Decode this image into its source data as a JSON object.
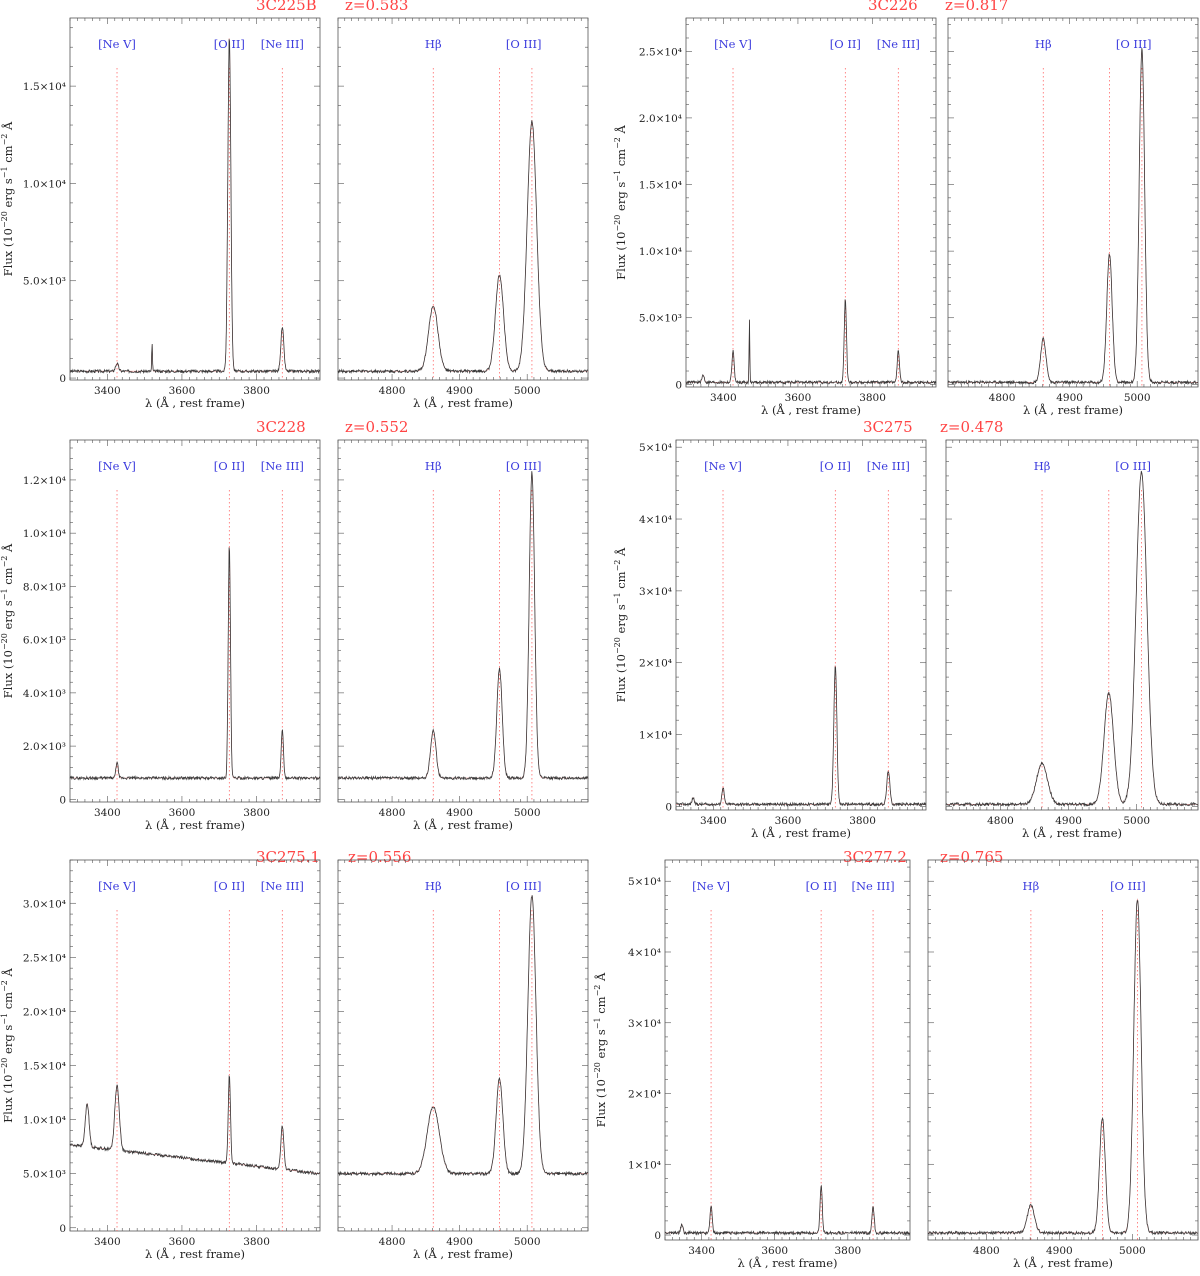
{
  "chart_data": [
    {
      "type": "line",
      "title": "3C225B",
      "subtitle": "z=0.583",
      "ylabel": "Flux (10$^{-20}$ erg s$^{-1}$ cm$^{-2}$ Å",
      "xlabel": "λ (Å , rest frame)",
      "ylim": [
        -100,
        18500
      ],
      "yticks": [
        {
          "v": 0,
          "label": "0"
        },
        {
          "v": 5000,
          "label": "5.0×10³"
        },
        {
          "v": 10000,
          "label": "1.0×10⁴"
        },
        {
          "v": 15000,
          "label": "1.5×10⁴"
        }
      ],
      "continuum": 350,
      "panels": [
        {
          "xlim": [
            3300,
            3970
          ],
          "xticks": [
            3400,
            3600,
            3800
          ],
          "lines": [
            {
              "name": "[Ne V]",
              "wl": 3426
            },
            {
              "name": "[O II]",
              "wl": 3727
            },
            {
              "name": "[Ne III]",
              "wl": 3869
            }
          ],
          "peaks": [
            {
              "wl": 3426,
              "flux": 750,
              "w": 4
            },
            {
              "wl": 3520,
              "flux": 1800,
              "w": 1
            },
            {
              "wl": 3727,
              "flux": 17600,
              "w": 4
            },
            {
              "wl": 3869,
              "flux": 2600,
              "w": 4
            }
          ]
        },
        {
          "xlim": [
            4720,
            5090
          ],
          "xticks": [
            4800,
            4900,
            5000
          ],
          "lines": [
            {
              "name": "Hβ",
              "wl": 4861
            },
            {
              "name": "[O III]",
              "wl": 5007,
              "also": 4959
            }
          ],
          "peaks": [
            {
              "wl": 4861,
              "flux": 3700,
              "w": 7
            },
            {
              "wl": 4959,
              "flux": 5300,
              "w": 6
            },
            {
              "wl": 5007,
              "flux": 13200,
              "w": 7
            }
          ]
        }
      ]
    },
    {
      "type": "line",
      "title": "3C226",
      "subtitle": "z=0.817",
      "ylabel": "Flux (10$^{-20}$ erg s$^{-1}$ cm$^{-2}$ Å",
      "xlabel": "λ (Å , rest frame)",
      "ylim": [
        -200,
        27500
      ],
      "yticks": [
        {
          "v": 0,
          "label": "0"
        },
        {
          "v": 5000,
          "label": "5.0×10³"
        },
        {
          "v": 10000,
          "label": "1.0×10⁴"
        },
        {
          "v": 15000,
          "label": "1.5×10⁴"
        },
        {
          "v": 20000,
          "label": "2.0×10⁴"
        },
        {
          "v": 25000,
          "label": "2.5×10⁴"
        }
      ],
      "continuum": 150,
      "panels": [
        {
          "xlim": [
            3300,
            3970
          ],
          "xticks": [
            3400,
            3600,
            3800
          ],
          "lines": [
            {
              "name": "[Ne V]",
              "wl": 3426
            },
            {
              "name": "[O II]",
              "wl": 3727
            },
            {
              "name": "[Ne III]",
              "wl": 3869
            }
          ],
          "peaks": [
            {
              "wl": 3346,
              "flux": 700,
              "w": 3
            },
            {
              "wl": 3426,
              "flux": 2500,
              "w": 3
            },
            {
              "wl": 3470,
              "flux": 4800,
              "w": 1
            },
            {
              "wl": 3727,
              "flux": 6400,
              "w": 3
            },
            {
              "wl": 3869,
              "flux": 2500,
              "w": 3
            }
          ]
        },
        {
          "xlim": [
            4720,
            5090
          ],
          "xticks": [
            4800,
            4900,
            5000
          ],
          "lines": [
            {
              "name": "Hβ",
              "wl": 4861
            },
            {
              "name": "[O III]",
              "wl": 5007,
              "also": 4959
            }
          ],
          "peaks": [
            {
              "wl": 4861,
              "flux": 3400,
              "w": 4
            },
            {
              "wl": 4959,
              "flux": 9800,
              "w": 4
            },
            {
              "wl": 5007,
              "flux": 25200,
              "w": 4
            }
          ]
        }
      ]
    },
    {
      "type": "line",
      "title": "3C228",
      "subtitle": "z=0.552",
      "ylabel": "Flux (10$^{-20}$ erg s$^{-1}$ cm$^{-2}$ Å",
      "xlabel": "λ (Å , rest frame)",
      "ylim": [
        -100,
        13500
      ],
      "yticks": [
        {
          "v": 0,
          "label": "0"
        },
        {
          "v": 2000,
          "label": "2.0×10³"
        },
        {
          "v": 4000,
          "label": "4.0×10³"
        },
        {
          "v": 6000,
          "label": "6.0×10³"
        },
        {
          "v": 8000,
          "label": "8.0×10³"
        },
        {
          "v": 10000,
          "label": "1.0×10⁴"
        },
        {
          "v": 12000,
          "label": "1.2×10⁴"
        }
      ],
      "continuum": 800,
      "panels": [
        {
          "xlim": [
            3300,
            3970
          ],
          "xticks": [
            3400,
            3600,
            3800
          ],
          "lines": [
            {
              "name": "[Ne V]",
              "wl": 3426
            },
            {
              "name": "[O II]",
              "wl": 3727
            },
            {
              "name": "[Ne III]",
              "wl": 3869
            }
          ],
          "peaks": [
            {
              "wl": 3426,
              "flux": 1400,
              "w": 3
            },
            {
              "wl": 3727,
              "flux": 9600,
              "w": 3
            },
            {
              "wl": 3869,
              "flux": 2600,
              "w": 3
            }
          ]
        },
        {
          "xlim": [
            4720,
            5090
          ],
          "xticks": [
            4800,
            4900,
            5000
          ],
          "lines": [
            {
              "name": "Hβ",
              "wl": 4861
            },
            {
              "name": "[O III]",
              "wl": 5007,
              "also": 4959
            }
          ],
          "peaks": [
            {
              "wl": 4861,
              "flux": 2600,
              "w": 4
            },
            {
              "wl": 4959,
              "flux": 4900,
              "w": 4
            },
            {
              "wl": 5007,
              "flux": 12300,
              "w": 4
            }
          ]
        }
      ]
    },
    {
      "type": "line",
      "title": "3C275",
      "subtitle": "z=0.478",
      "ylabel": "Flux (10$^{-20}$ erg s$^{-1}$ cm$^{-2}$ Å",
      "xlabel": "λ (Å , rest frame)",
      "ylim": [
        -500,
        51000
      ],
      "yticks": [
        {
          "v": 0,
          "label": "0"
        },
        {
          "v": 10000,
          "label": "1×10⁴"
        },
        {
          "v": 20000,
          "label": "2×10⁴"
        },
        {
          "v": 30000,
          "label": "3×10⁴"
        },
        {
          "v": 40000,
          "label": "4×10⁴"
        },
        {
          "v": 50000,
          "label": "5×10⁴"
        }
      ],
      "continuum": 300,
      "panels": [
        {
          "xlim": [
            3300,
            3970
          ],
          "xticks": [
            3400,
            3600,
            3800
          ],
          "lines": [
            {
              "name": "[Ne V]",
              "wl": 3426
            },
            {
              "name": "[O II]",
              "wl": 3727
            },
            {
              "name": "[Ne III]",
              "wl": 3869
            }
          ],
          "peaks": [
            {
              "wl": 3346,
              "flux": 1200,
              "w": 3
            },
            {
              "wl": 3426,
              "flux": 2700,
              "w": 3
            },
            {
              "wl": 3727,
              "flux": 19800,
              "w": 4
            },
            {
              "wl": 3869,
              "flux": 5000,
              "w": 4
            }
          ]
        },
        {
          "xlim": [
            4720,
            5090
          ],
          "xticks": [
            4800,
            4900,
            5000
          ],
          "lines": [
            {
              "name": "Hβ",
              "wl": 4861
            },
            {
              "name": "[O III]",
              "wl": 5007,
              "also": 4959
            }
          ],
          "peaks": [
            {
              "wl": 4861,
              "flux": 6000,
              "w": 8
            },
            {
              "wl": 4959,
              "flux": 15800,
              "w": 7
            },
            {
              "wl": 5007,
              "flux": 46500,
              "w": 8
            }
          ]
        }
      ]
    },
    {
      "type": "line",
      "title": "3C275.1",
      "subtitle": "z=0.556",
      "ylabel": "Flux (10$^{-20}$ erg s$^{-1}$ cm$^{-2}$ Å",
      "xlabel": "λ (Å , rest frame)",
      "ylim": [
        -300,
        34000
      ],
      "yticks": [
        {
          "v": 0,
          "label": "0"
        },
        {
          "v": 5000,
          "label": "5.0×10³"
        },
        {
          "v": 10000,
          "label": "1.0×10⁴"
        },
        {
          "v": 15000,
          "label": "1.5×10⁴"
        },
        {
          "v": 20000,
          "label": "2.0×10⁴"
        },
        {
          "v": 25000,
          "label": "2.5×10⁴"
        },
        {
          "v": 30000,
          "label": "3.0×10⁴"
        }
      ],
      "continuum": 5000,
      "panels": [
        {
          "xlim": [
            3300,
            3970
          ],
          "xticks": [
            3400,
            3600,
            3800
          ],
          "lines": [
            {
              "name": "[Ne V]",
              "wl": 3426
            },
            {
              "name": "[O II]",
              "wl": 3727
            },
            {
              "name": "[Ne III]",
              "wl": 3869
            }
          ],
          "peaks": [
            {
              "wl": 3346,
              "flux": 9000,
              "w": 5
            },
            {
              "wl": 3426,
              "flux": 11000,
              "w": 6
            },
            {
              "wl": 3727,
              "flux": 13100,
              "w": 3
            },
            {
              "wl": 3869,
              "flux": 9000,
              "w": 4
            }
          ]
        },
        {
          "xlim": [
            4720,
            5090
          ],
          "xticks": [
            4800,
            4900,
            5000
          ],
          "lines": [
            {
              "name": "Hβ",
              "wl": 4861
            },
            {
              "name": "[O III]",
              "wl": 5007,
              "also": 4959
            }
          ],
          "peaks": [
            {
              "wl": 4861,
              "flux": 11200,
              "w": 9
            },
            {
              "wl": 4959,
              "flux": 13800,
              "w": 5
            },
            {
              "wl": 5007,
              "flux": 30700,
              "w": 6
            }
          ]
        }
      ]
    },
    {
      "type": "line",
      "title": "3C277.2",
      "subtitle": "z=0.765",
      "ylabel": "Flux (10$^{-20}$ erg s$^{-1}$ cm$^{-2}$ Å",
      "xlabel": "λ (Å , rest frame)",
      "ylim": [
        -700,
        53000
      ],
      "yticks": [
        {
          "v": 0,
          "label": "0"
        },
        {
          "v": 10000,
          "label": "1×10⁴"
        },
        {
          "v": 20000,
          "label": "2×10⁴"
        },
        {
          "v": 30000,
          "label": "3×10⁴"
        },
        {
          "v": 40000,
          "label": "4×10⁴"
        },
        {
          "v": 50000,
          "label": "5×10⁴"
        }
      ],
      "continuum": 300,
      "panels": [
        {
          "xlim": [
            3300,
            3970
          ],
          "xticks": [
            3400,
            3600,
            3800
          ],
          "lines": [
            {
              "name": "[Ne V]",
              "wl": 3426
            },
            {
              "name": "[O II]",
              "wl": 3727
            },
            {
              "name": "[Ne III]",
              "wl": 3869
            }
          ],
          "peaks": [
            {
              "wl": 3346,
              "flux": 1500,
              "w": 3
            },
            {
              "wl": 3426,
              "flux": 4200,
              "w": 3
            },
            {
              "wl": 3727,
              "flux": 7000,
              "w": 3
            },
            {
              "wl": 3869,
              "flux": 4100,
              "w": 3
            }
          ]
        },
        {
          "xlim": [
            4720,
            5090
          ],
          "xticks": [
            4800,
            4900,
            5000
          ],
          "lines": [
            {
              "name": "Hβ",
              "wl": 4861
            },
            {
              "name": "[O III]",
              "wl": 5007,
              "also": 4959
            }
          ],
          "peaks": [
            {
              "wl": 4861,
              "flux": 4200,
              "w": 5
            },
            {
              "wl": 4959,
              "flux": 16500,
              "w": 4
            },
            {
              "wl": 5007,
              "flux": 47500,
              "w": 5
            }
          ]
        }
      ]
    }
  ]
}
